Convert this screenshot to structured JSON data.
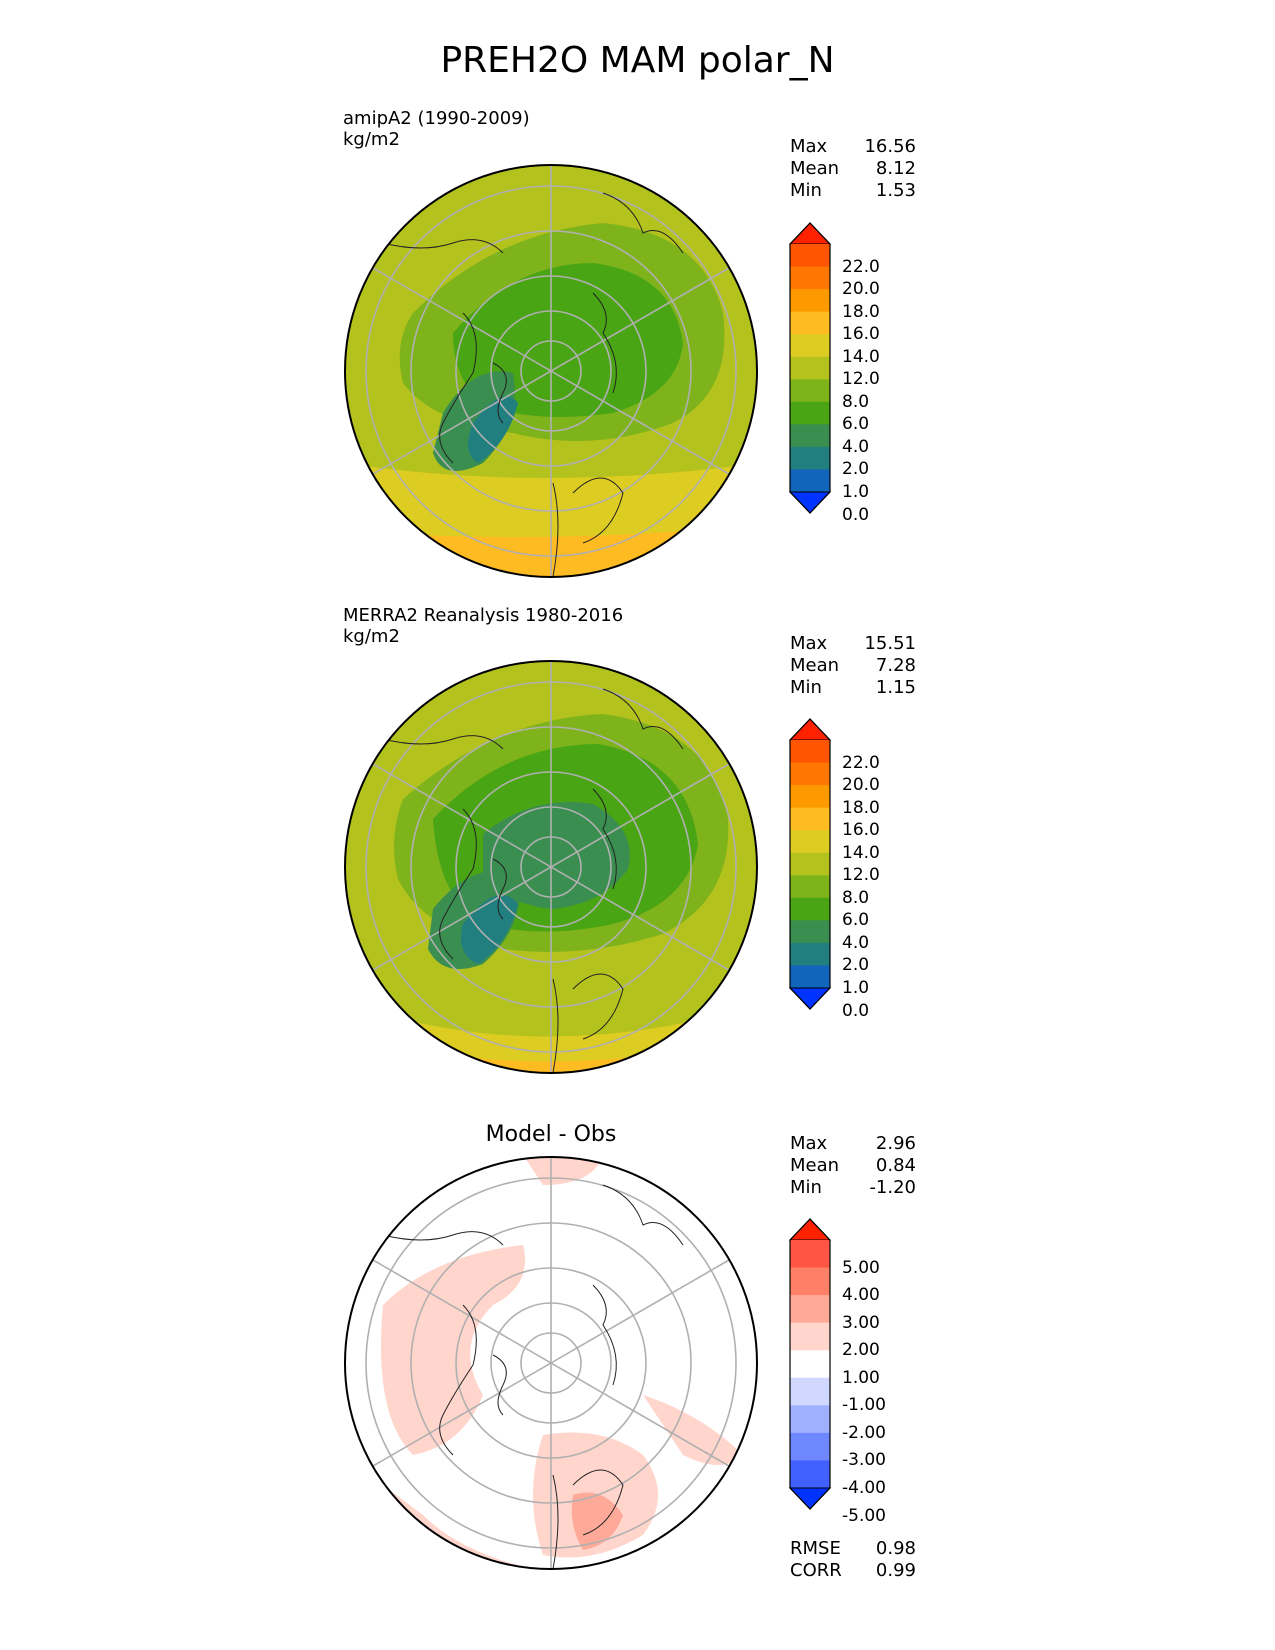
{
  "title": "PREH2O MAM polar_N",
  "panels": [
    {
      "subtitle": "amipA2 (1990-2009)",
      "units": "kg/m2",
      "stats": [
        {
          "label": "Max",
          "value": "16.56"
        },
        {
          "label": "Mean",
          "value": "8.12"
        },
        {
          "label": "Min",
          "value": "1.53"
        }
      ],
      "colorbar": {
        "labels": [
          "22.0",
          "20.0",
          "18.0",
          "16.0",
          "14.0",
          "12.0",
          "8.0",
          "6.0",
          "4.0",
          "2.0",
          "1.0",
          "0.0"
        ],
        "colors": [
          "#ff2200",
          "#ff5500",
          "#ff7700",
          "#ff9900",
          "#ffbb22",
          "#ddcc22",
          "#b4c21e",
          "#7fb31b",
          "#4aa514",
          "#3a8f50",
          "#227f7f",
          "#1166bb",
          "#0033ff"
        ]
      }
    },
    {
      "subtitle": "MERRA2 Reanalysis 1980-2016",
      "units": "kg/m2",
      "stats": [
        {
          "label": "Max",
          "value": "15.51"
        },
        {
          "label": "Mean",
          "value": "7.28"
        },
        {
          "label": "Min",
          "value": "1.15"
        }
      ],
      "colorbar": {
        "labels": [
          "22.0",
          "20.0",
          "18.0",
          "16.0",
          "14.0",
          "12.0",
          "8.0",
          "6.0",
          "4.0",
          "2.0",
          "1.0",
          "0.0"
        ],
        "colors": [
          "#ff2200",
          "#ff5500",
          "#ff7700",
          "#ff9900",
          "#ffbb22",
          "#ddcc22",
          "#b4c21e",
          "#7fb31b",
          "#4aa514",
          "#3a8f50",
          "#227f7f",
          "#1166bb",
          "#0033ff"
        ]
      }
    },
    {
      "subtitle": "Model - Obs",
      "stats": [
        {
          "label": "Max",
          "value": "2.96"
        },
        {
          "label": "Mean",
          "value": "0.84"
        },
        {
          "label": "Min",
          "value": "-1.20"
        }
      ],
      "colorbar": {
        "labels": [
          "5.00",
          "4.00",
          "3.00",
          "2.00",
          "1.00",
          "-1.00",
          "-2.00",
          "-3.00",
          "-4.00",
          "-5.00"
        ],
        "colors": [
          "#ff2200",
          "#ff5544",
          "#ff8066",
          "#ffaa99",
          "#ffd5cc",
          "#ffffff",
          "#d0d8ff",
          "#a0b0ff",
          "#7088ff",
          "#4060ff",
          "#0033ff"
        ]
      },
      "metrics": [
        {
          "label": "RMSE",
          "value": "0.98"
        },
        {
          "label": "CORR",
          "value": "0.99"
        }
      ]
    }
  ]
}
